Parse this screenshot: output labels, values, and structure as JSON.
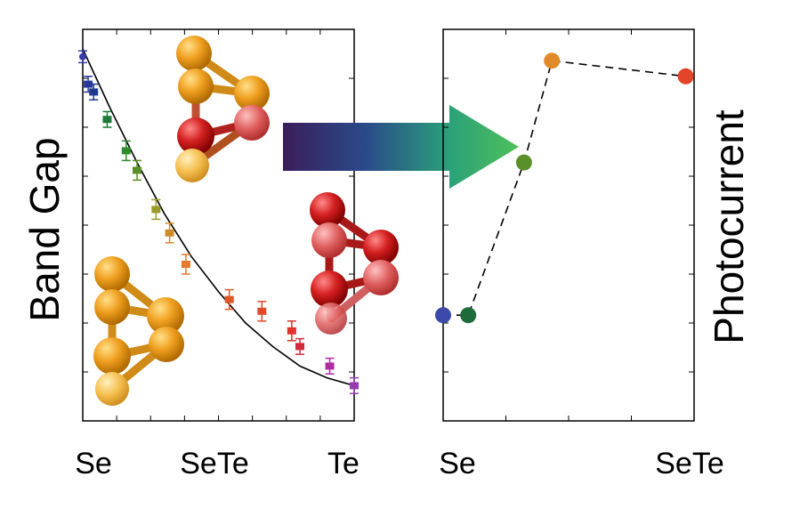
{
  "chart_data": [
    {
      "type": "scatter",
      "ylabel": "Band Gap",
      "x_tick_labels": [
        "Se",
        "SeTe",
        "Te"
      ],
      "x_composition_te_fraction": [
        0,
        0.5,
        1
      ],
      "y_units": "arbitrary (no numeric ticks printed)",
      "y_relative_range": [
        0,
        1
      ],
      "series": [
        {
          "marker": "square with error bars",
          "points": [
            {
              "x": 0.0,
              "y": 0.93,
              "err": 0.015,
              "color": "#3b3ba8"
            },
            {
              "x": 0.02,
              "y": 0.86,
              "err": 0.02,
              "color": "#2b3a9a"
            },
            {
              "x": 0.04,
              "y": 0.84,
              "err": 0.02,
              "color": "#1f3a8a"
            },
            {
              "x": 0.09,
              "y": 0.77,
              "err": 0.02,
              "color": "#1f7a3a"
            },
            {
              "x": 0.16,
              "y": 0.69,
              "err": 0.025,
              "color": "#2e8b2e"
            },
            {
              "x": 0.2,
              "y": 0.64,
              "err": 0.025,
              "color": "#5a8f2a"
            },
            {
              "x": 0.27,
              "y": 0.54,
              "err": 0.025,
              "color": "#9a9a2a"
            },
            {
              "x": 0.32,
              "y": 0.48,
              "err": 0.025,
              "color": "#d08a2a"
            },
            {
              "x": 0.38,
              "y": 0.4,
              "err": 0.025,
              "color": "#e67a2a"
            },
            {
              "x": 0.54,
              "y": 0.31,
              "err": 0.025,
              "color": "#e2552a"
            },
            {
              "x": 0.66,
              "y": 0.28,
              "err": 0.025,
              "color": "#e04a2a"
            },
            {
              "x": 0.77,
              "y": 0.23,
              "err": 0.025,
              "color": "#e2302a"
            },
            {
              "x": 0.8,
              "y": 0.19,
              "err": 0.02,
              "color": "#d22a3a"
            },
            {
              "x": 0.91,
              "y": 0.14,
              "err": 0.02,
              "color": "#b02aa0"
            },
            {
              "x": 1.0,
              "y": 0.09,
              "err": 0.02,
              "color": "#9a3ab0"
            }
          ]
        }
      ],
      "fit_line": {
        "color": "#000000",
        "points": [
          {
            "x": 0.0,
            "y": 0.95
          },
          {
            "x": 0.1,
            "y": 0.8
          },
          {
            "x": 0.2,
            "y": 0.66
          },
          {
            "x": 0.3,
            "y": 0.53
          },
          {
            "x": 0.4,
            "y": 0.42
          },
          {
            "x": 0.5,
            "y": 0.33
          },
          {
            "x": 0.6,
            "y": 0.25
          },
          {
            "x": 0.7,
            "y": 0.19
          },
          {
            "x": 0.8,
            "y": 0.14
          },
          {
            "x": 0.9,
            "y": 0.11
          },
          {
            "x": 1.0,
            "y": 0.09
          }
        ]
      },
      "grid": false
    },
    {
      "type": "line",
      "ylabel": "Photocurrent",
      "x_tick_labels": [
        "Se",
        "SeTe"
      ],
      "x_composition_te_fraction": [
        0,
        0.5
      ],
      "y_units": "arbitrary (no numeric ticks printed)",
      "y_relative_range": [
        0,
        1
      ],
      "line_style": "dashed",
      "series": [
        {
          "marker": "circle",
          "points": [
            {
              "x": 0.0,
              "y": 0.27,
              "color": "#3b4aa8"
            },
            {
              "x": 0.09,
              "y": 0.27,
              "color": "#1f6a3a"
            },
            {
              "x": 0.29,
              "y": 0.66,
              "color": "#5a8f2a"
            },
            {
              "x": 0.39,
              "y": 0.92,
              "color": "#e08a2a"
            },
            {
              "x": 0.87,
              "y": 0.88,
              "color": "#e2452a"
            }
          ]
        }
      ],
      "grid": false
    }
  ],
  "decorations": {
    "arrow_gradient": [
      "#3a1e5a",
      "#2a4a8a",
      "#2aa07a",
      "#4ec05a"
    ],
    "molecule_colors": {
      "gold": "#f0a020",
      "red": "#d42020"
    }
  }
}
